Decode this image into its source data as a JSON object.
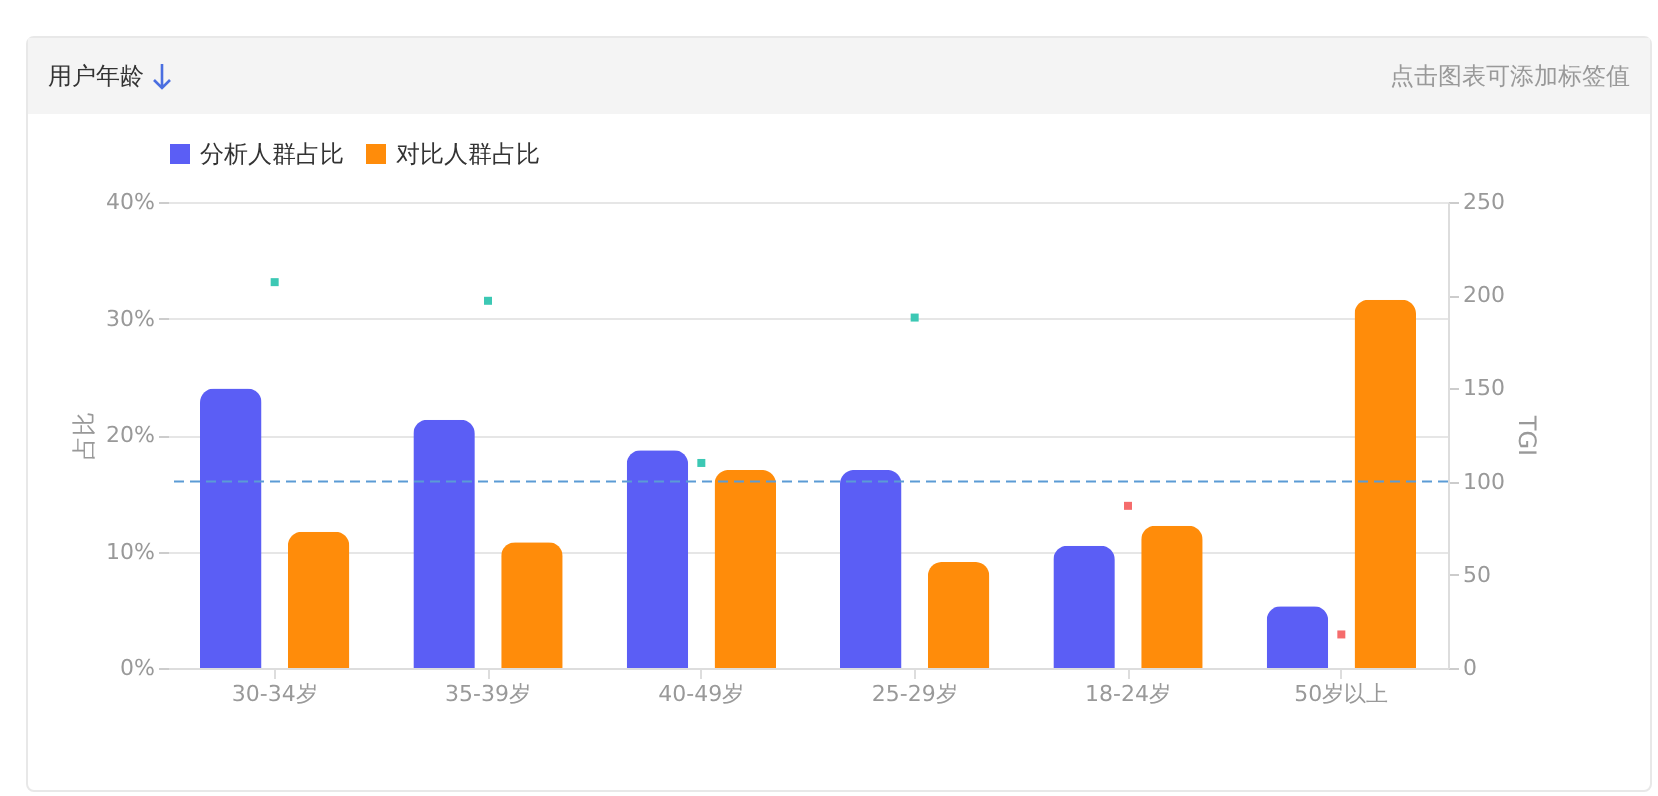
{
  "chart_data": {
    "type": "bar",
    "title": "用户年龄",
    "annotations": [
      "点击图表可添加标签值"
    ],
    "ylabel": "占比",
    "y2label": "TGI",
    "categories": [
      "30-34岁",
      "35-39岁",
      "40-49岁",
      "25-29岁",
      "18-24岁",
      "50岁以上"
    ],
    "series": [
      {
        "name": "分析人群占比",
        "color": "#5b5ef5",
        "values": [
          24.0,
          21.3,
          18.7,
          17.0,
          10.5,
          5.3
        ]
      },
      {
        "name": "对比人群占比",
        "color": "#ff8c0a",
        "values": [
          11.7,
          10.8,
          17.0,
          9.1,
          12.2,
          31.6
        ]
      },
      {
        "type": "scatter",
        "axis": "y2",
        "colors": [
          "#3cc8b4",
          "#3cc8b4",
          "#3cc8b4",
          "#3cc8b4",
          "#f56c6c",
          "#f56c6c"
        ],
        "values": [
          207,
          197,
          110,
          188,
          87,
          18
        ]
      }
    ],
    "ylim": [
      0,
      40
    ],
    "yticks": [
      {
        "value": 0,
        "label": "0%"
      },
      {
        "value": 10,
        "label": "10%"
      },
      {
        "value": 20,
        "label": "20%"
      },
      {
        "value": 30,
        "label": "30%"
      },
      {
        "value": 40,
        "label": "40%"
      }
    ],
    "y2lim": [
      0,
      250
    ],
    "y2ticks": [
      0,
      50,
      100,
      150,
      200,
      250
    ],
    "ref_lines": [
      {
        "axis": "y2",
        "value": 100,
        "color": "#5b9bd5",
        "line_style": "dashed"
      }
    ],
    "grid": "y",
    "legend": "top left"
  }
}
